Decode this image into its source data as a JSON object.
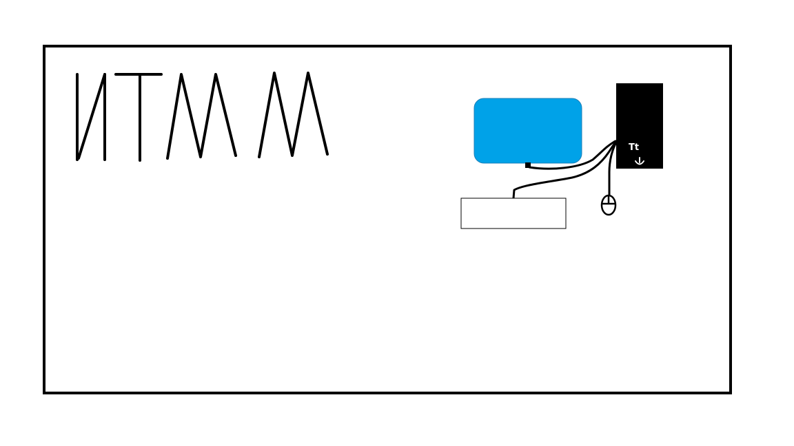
{
  "drawing": {
    "handwritten_title": "ИТМM",
    "tower_label": "Tt",
    "colors": {
      "background": "#ffffff",
      "ink": "#000000",
      "monitor": "#00a2e8",
      "tower": "#000000",
      "tower_text": "#ffffff"
    }
  }
}
